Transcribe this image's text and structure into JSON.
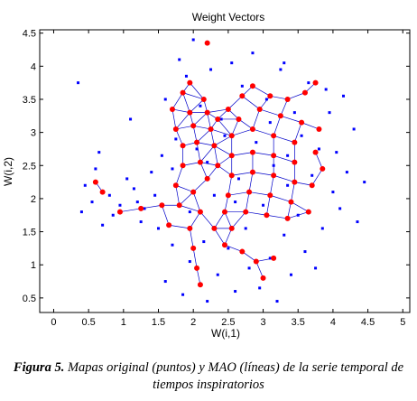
{
  "chart_data": {
    "type": "scatter",
    "title": "Weight Vectors",
    "xlabel": "W(i,1)",
    "ylabel": "W(i,2)",
    "xlim": [
      -0.2,
      5.1
    ],
    "ylim": [
      0.28,
      4.55
    ],
    "xticks": [
      "0",
      "0.5",
      "1",
      "1.5",
      "2",
      "2.5",
      "3",
      "3.5",
      "4",
      "4.5",
      "5"
    ],
    "yticks": [
      "0.5",
      "1",
      "1.5",
      "2",
      "2.5",
      "3",
      "3.5",
      "4",
      "4.5"
    ],
    "grid": false,
    "colors": {
      "data_points": "#0000ff",
      "map_nodes": "#ff0000",
      "map_lines": "#0000c8"
    },
    "series": [
      {
        "values": [
          [
            0.35,
            3.75
          ],
          [
            0.4,
            1.8
          ],
          [
            0.45,
            2.2
          ],
          [
            0.55,
            1.95
          ],
          [
            0.6,
            2.45
          ],
          [
            0.65,
            2.7
          ],
          [
            0.7,
            1.6
          ],
          [
            0.8,
            2.05
          ],
          [
            0.85,
            1.75
          ],
          [
            0.95,
            1.9
          ],
          [
            1.05,
            2.3
          ],
          [
            1.1,
            3.2
          ],
          [
            1.15,
            2.15
          ],
          [
            1.25,
            1.65
          ],
          [
            1.3,
            1.85
          ],
          [
            1.4,
            2.4
          ],
          [
            1.5,
            1.55
          ],
          [
            1.55,
            2.65
          ],
          [
            1.6,
            3.5
          ],
          [
            1.6,
            0.75
          ],
          [
            1.7,
            1.3
          ],
          [
            1.75,
            2.9
          ],
          [
            1.8,
            4.1
          ],
          [
            1.85,
            0.55
          ],
          [
            1.9,
            3.85
          ],
          [
            1.95,
            1.05
          ],
          [
            2.0,
            4.4
          ],
          [
            2.05,
            2.75
          ],
          [
            2.1,
            3.4
          ],
          [
            2.15,
            1.35
          ],
          [
            2.2,
            0.45
          ],
          [
            2.25,
            3.95
          ],
          [
            2.3,
            2.05
          ],
          [
            2.35,
            0.85
          ],
          [
            2.4,
            3.2
          ],
          [
            2.5,
            1.25
          ],
          [
            2.55,
            4.05
          ],
          [
            2.6,
            0.6
          ],
          [
            2.65,
            2.3
          ],
          [
            2.7,
            3.7
          ],
          [
            2.75,
            1.55
          ],
          [
            2.8,
            0.95
          ],
          [
            2.85,
            4.2
          ],
          [
            2.9,
            2.85
          ],
          [
            2.95,
            0.65
          ],
          [
            3.0,
            1.9
          ],
          [
            3.05,
            3.5
          ],
          [
            3.1,
            1.1
          ],
          [
            3.15,
            2.5
          ],
          [
            3.2,
            0.45
          ],
          [
            3.25,
            3.95
          ],
          [
            3.3,
            1.45
          ],
          [
            3.35,
            2.2
          ],
          [
            3.4,
            0.85
          ],
          [
            3.45,
            3.3
          ],
          [
            3.5,
            1.75
          ],
          [
            3.55,
            2.95
          ],
          [
            3.6,
            1.2
          ],
          [
            3.65,
            3.75
          ],
          [
            3.7,
            2.35
          ],
          [
            3.75,
            0.95
          ],
          [
            3.8,
            2.75
          ],
          [
            3.85,
            1.55
          ],
          [
            3.95,
            3.3
          ],
          [
            4.0,
            2.1
          ],
          [
            4.05,
            2.7
          ],
          [
            4.1,
            1.85
          ],
          [
            4.15,
            3.55
          ],
          [
            4.2,
            2.4
          ],
          [
            4.3,
            3.05
          ],
          [
            4.35,
            1.65
          ],
          [
            4.45,
            2.25
          ],
          [
            3.3,
            4.05
          ],
          [
            3.9,
            3.65
          ],
          [
            2.2,
            2.55
          ],
          [
            1.95,
            1.8
          ],
          [
            2.6,
            1.95
          ],
          [
            3.1,
            3.15
          ],
          [
            1.45,
            2.05
          ],
          [
            1.2,
            1.95
          ],
          [
            2.45,
            2.95
          ],
          [
            2.85,
            2.4
          ],
          [
            3.35,
            2.65
          ],
          [
            1.7,
            2.45
          ]
        ]
      },
      {
        "values": [
          [
            0.6,
            2.25
          ],
          [
            0.7,
            2.1
          ],
          [
            0.95,
            1.8
          ],
          [
            1.25,
            1.85
          ],
          [
            1.55,
            1.9
          ],
          [
            1.8,
            1.9
          ],
          [
            1.65,
            1.6
          ],
          [
            1.95,
            1.55
          ],
          [
            2.1,
            1.8
          ],
          [
            1.75,
            2.2
          ],
          [
            2.0,
            2.1
          ],
          [
            2.2,
            2.3
          ],
          [
            1.85,
            2.5
          ],
          [
            2.1,
            2.55
          ],
          [
            2.35,
            2.5
          ],
          [
            1.85,
            2.8
          ],
          [
            2.05,
            2.85
          ],
          [
            2.3,
            2.8
          ],
          [
            1.75,
            3.05
          ],
          [
            2.0,
            3.1
          ],
          [
            2.25,
            3.05
          ],
          [
            1.7,
            3.35
          ],
          [
            1.95,
            3.3
          ],
          [
            2.2,
            3.3
          ],
          [
            1.85,
            3.6
          ],
          [
            1.95,
            3.75
          ],
          [
            2.5,
            3.35
          ],
          [
            2.7,
            3.55
          ],
          [
            2.85,
            3.7
          ],
          [
            3.1,
            3.55
          ],
          [
            3.35,
            3.5
          ],
          [
            3.6,
            3.6
          ],
          [
            3.75,
            3.75
          ],
          [
            2.65,
            3.2
          ],
          [
            2.95,
            3.35
          ],
          [
            3.25,
            3.25
          ],
          [
            3.55,
            3.15
          ],
          [
            3.8,
            3.05
          ],
          [
            2.55,
            2.95
          ],
          [
            2.85,
            3.05
          ],
          [
            3.15,
            2.95
          ],
          [
            3.45,
            2.85
          ],
          [
            3.75,
            2.7
          ],
          [
            3.85,
            2.45
          ],
          [
            2.55,
            2.65
          ],
          [
            2.85,
            2.7
          ],
          [
            3.15,
            2.65
          ],
          [
            3.45,
            2.55
          ],
          [
            2.55,
            2.35
          ],
          [
            2.85,
            2.4
          ],
          [
            3.15,
            2.35
          ],
          [
            3.45,
            2.25
          ],
          [
            3.7,
            2.2
          ],
          [
            2.5,
            2.05
          ],
          [
            2.8,
            2.1
          ],
          [
            3.1,
            2.05
          ],
          [
            3.4,
            1.95
          ],
          [
            2.45,
            1.8
          ],
          [
            2.75,
            1.8
          ],
          [
            3.05,
            1.75
          ],
          [
            3.35,
            1.7
          ],
          [
            3.65,
            1.8
          ],
          [
            2.3,
            1.55
          ],
          [
            2.55,
            1.55
          ],
          [
            2.0,
            1.25
          ],
          [
            2.05,
            0.95
          ],
          [
            2.1,
            0.7
          ],
          [
            2.45,
            1.3
          ],
          [
            2.7,
            1.2
          ],
          [
            2.9,
            1.05
          ],
          [
            3.0,
            0.8
          ],
          [
            3.15,
            1.1
          ],
          [
            2.2,
            4.35
          ],
          [
            2.15,
            3.5
          ],
          [
            2.35,
            3.2
          ]
        ]
      }
    ]
  },
  "caption": {
    "label": "Figura 5.",
    "text": " Mapas original (puntos) y MAO (líneas) de la serie temporal de tiempos inspiratorios"
  }
}
